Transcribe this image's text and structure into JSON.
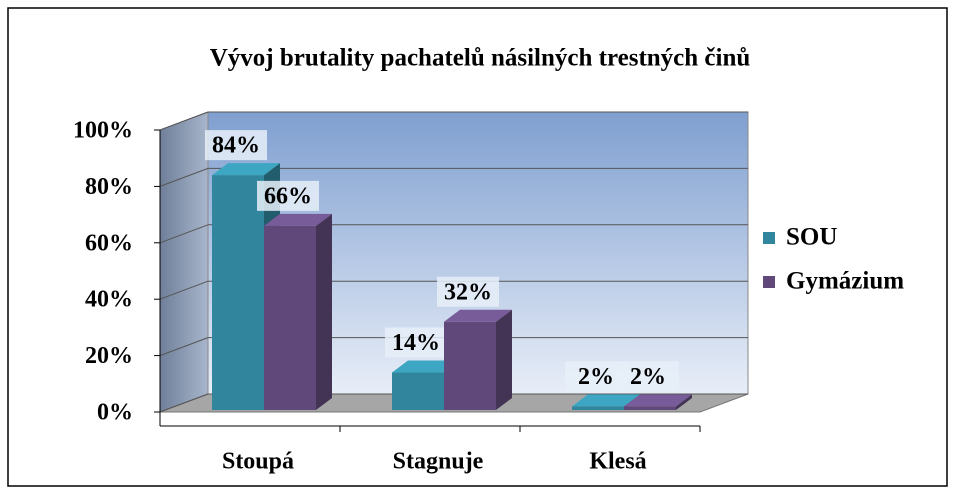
{
  "chart_data": {
    "type": "bar3d",
    "title": "Vývoj brutality pachatelů násilných trestných činů",
    "categories": [
      "Stoupá",
      "Stagnuje",
      "Klesá"
    ],
    "series": [
      {
        "name": "SOU",
        "color": "#31859c",
        "values": [
          84,
          14,
          2
        ],
        "value_labels": [
          "84%",
          "14%",
          "2%"
        ]
      },
      {
        "name": "Gymázium",
        "color": "#60497a",
        "values": [
          66,
          32,
          2
        ],
        "value_labels": [
          "66%",
          "32%",
          "2%"
        ]
      }
    ],
    "ylim": [
      0,
      100
    ],
    "yticks": [
      {
        "value": 0,
        "label": "0%"
      },
      {
        "value": 20,
        "label": "20%"
      },
      {
        "value": 40,
        "label": "40%"
      },
      {
        "value": 60,
        "label": "60%"
      },
      {
        "value": 80,
        "label": "80%"
      },
      {
        "value": 100,
        "label": "100%"
      }
    ],
    "grid": true,
    "legend": "right"
  }
}
